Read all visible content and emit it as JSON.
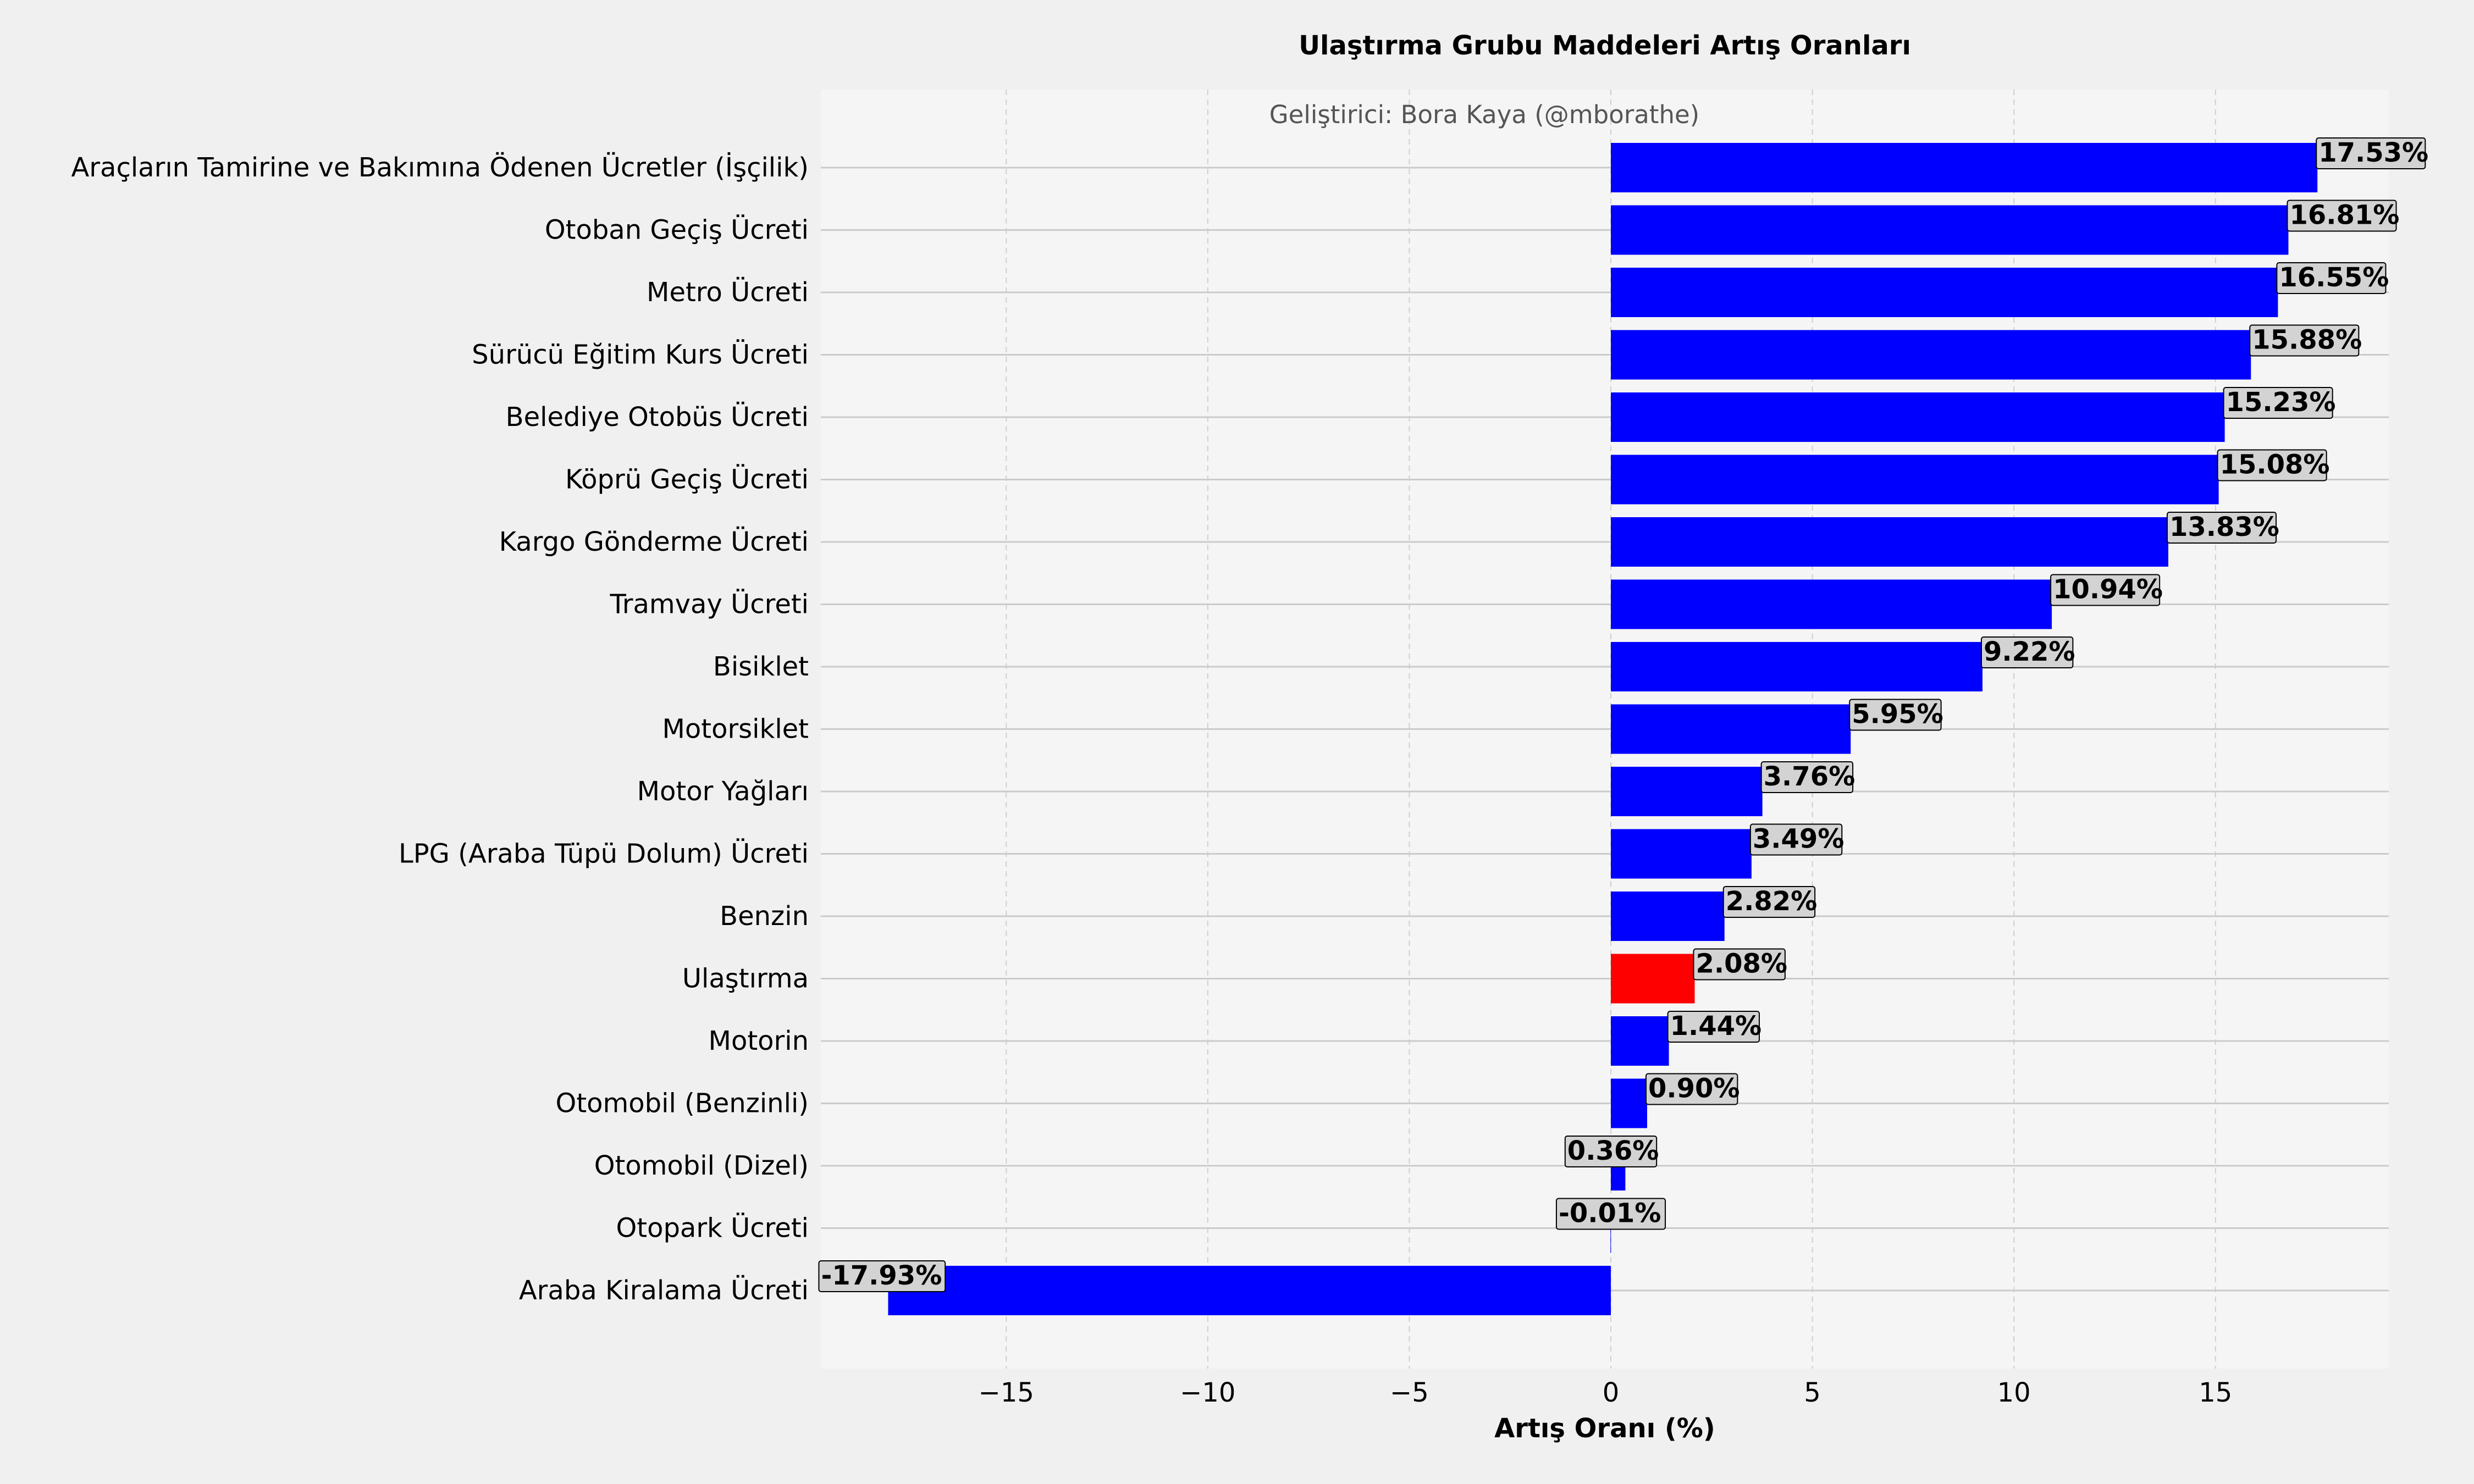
{
  "chart_data": {
    "type": "bar",
    "orientation": "horizontal",
    "title": "Ulaştırma Grubu Maddeleri Artış Oranları",
    "watermark": "Geliştirici: Bora Kaya (@mborathe)",
    "xlabel": "Artış Oranı (%)",
    "ylabel": "",
    "xlim": [
      -19.6,
      19.3
    ],
    "xticks": [
      -15,
      -10,
      -5,
      0,
      5,
      10,
      15
    ],
    "xtick_labels": [
      "−15",
      "−10",
      "−5",
      "0",
      "5",
      "10",
      "15"
    ],
    "grid": true,
    "colors": {
      "default": "#0000ff",
      "highlight": "#ff0000",
      "plot_bg": "#f5f5f5",
      "figure_bg": "#f0f0f0",
      "label_box": "#d3d3d3"
    },
    "categories": [
      "Araçların  Tamirine ve Bakımına Ödenen Ücretler (İşçilik)",
      "Otoban Geçiş Ücreti",
      "Metro Ücreti",
      "Sürücü Eğitim Kurs Ücreti",
      "Belediye Otobüs Ücreti",
      "Köprü Geçiş Ücreti",
      "Kargo Gönderme Ücreti",
      "Tramvay Ücreti",
      "Bisiklet",
      "Motorsiklet",
      "Motor Yağları",
      "LPG (Araba Tüpü Dolum)  Ücreti",
      "Benzin",
      "Ulaştırma",
      "Motorin",
      "Otomobil (Benzinli)",
      "Otomobil (Dizel)",
      "Otopark Ücreti",
      "Araba Kiralama Ücreti"
    ],
    "values": [
      17.53,
      16.81,
      16.55,
      15.88,
      15.23,
      15.08,
      13.83,
      10.94,
      9.22,
      5.95,
      3.76,
      3.49,
      2.82,
      2.08,
      1.44,
      0.9,
      0.36,
      -0.01,
      -17.93
    ],
    "value_labels": [
      "17.53%",
      "16.81%",
      "16.55%",
      "15.88%",
      "15.23%",
      "15.08%",
      "13.83%",
      "10.94%",
      "9.22%",
      "5.95%",
      "3.76%",
      "3.49%",
      "2.82%",
      "2.08%",
      "1.44%",
      "0.90%",
      "0.36%",
      "-0.01%",
      "-17.93%"
    ],
    "highlight_category": "Ulaştırma"
  }
}
